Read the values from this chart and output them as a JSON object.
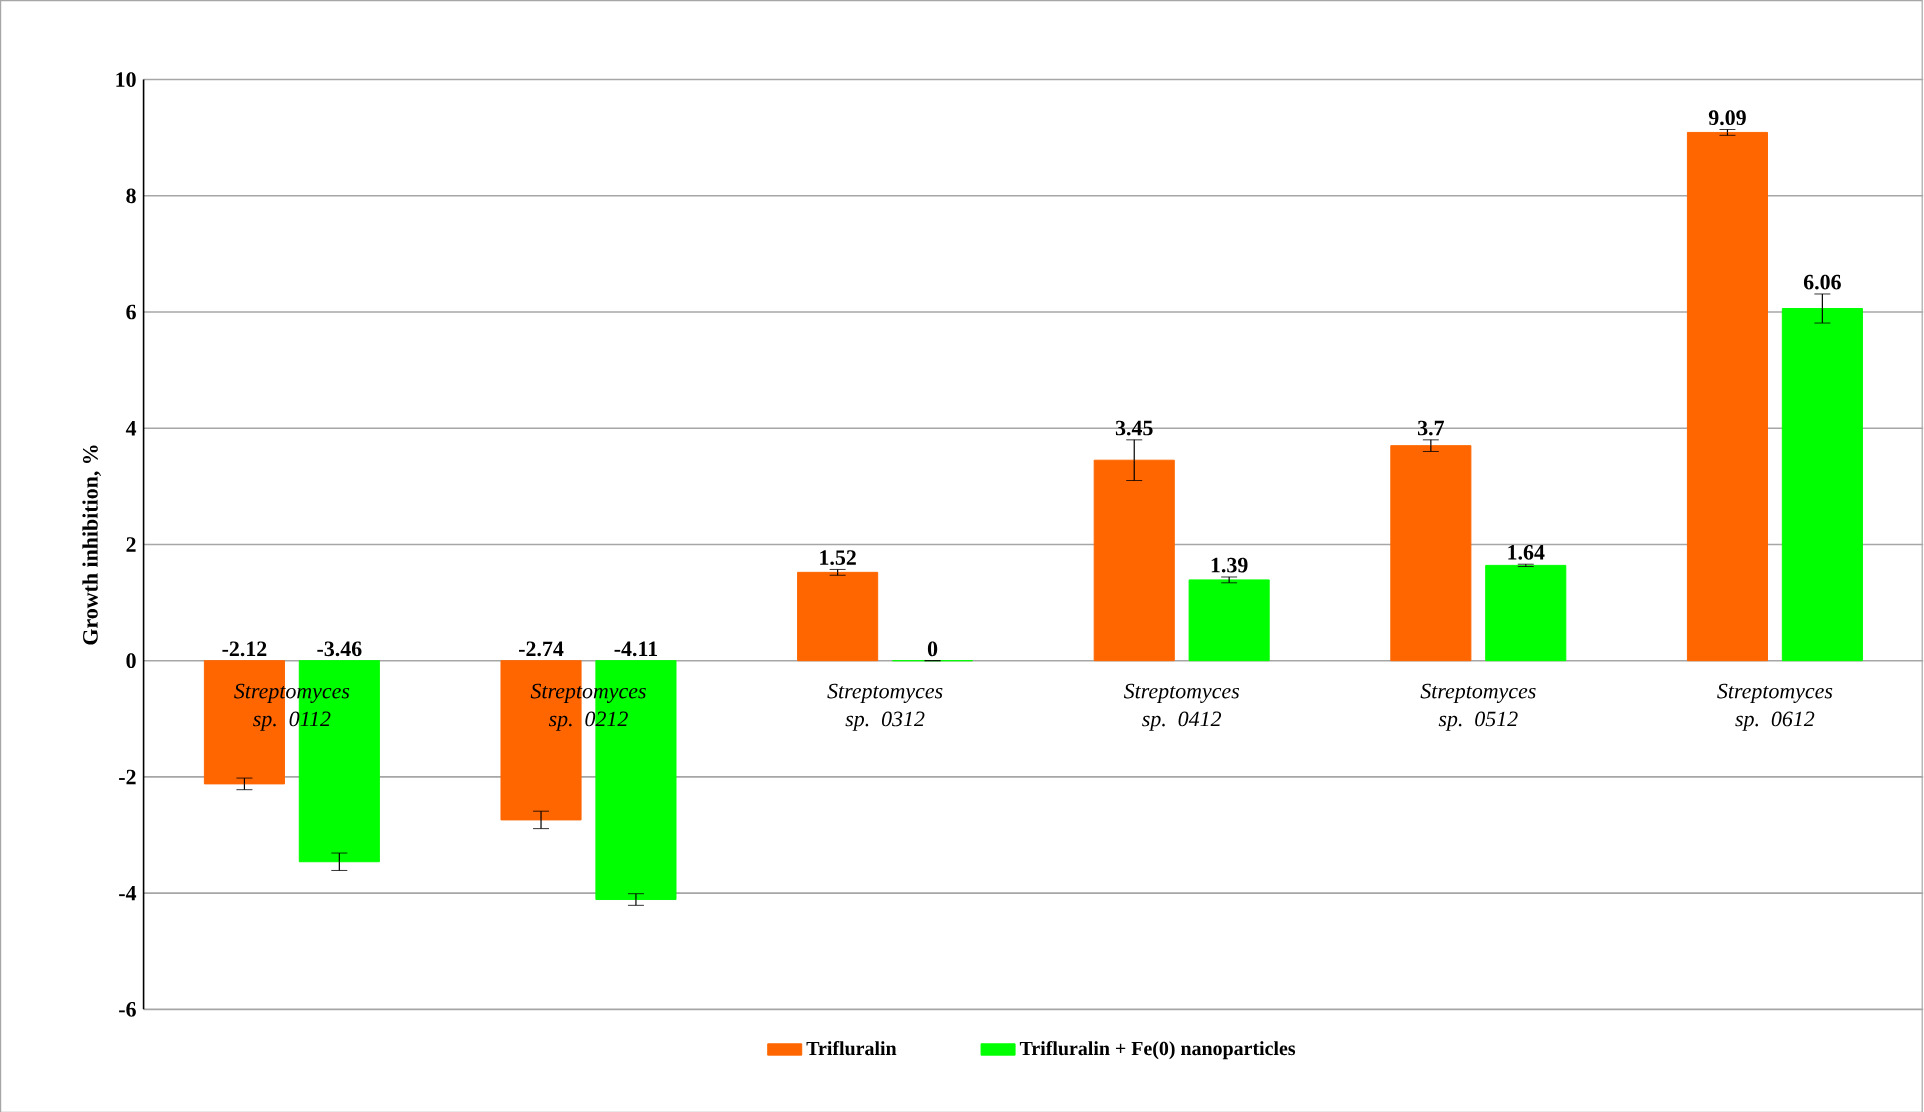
{
  "chart_data": {
    "type": "bar",
    "ylabel": "Growth inhibition, %",
    "categories": [
      "Streptomyces sp. 0112",
      "Streptomyces sp. 0212",
      "Streptomyces sp. 0312",
      "Streptomyces sp. 0412",
      "Streptomyces sp. 0512",
      "Streptomyces sp. 0612"
    ],
    "series": [
      {
        "name": "Trifluralin",
        "color": "#ff6600",
        "values": [
          -2.12,
          -2.74,
          1.52,
          3.45,
          3.7,
          9.09
        ],
        "errors": [
          0.1,
          0.15,
          0.05,
          0.35,
          0.1,
          0.05
        ]
      },
      {
        "name": "Trifluralin + Fe(0) nanoparticles",
        "color": "#00ff00",
        "values": [
          -3.46,
          -4.11,
          0,
          1.39,
          1.64,
          6.06
        ],
        "errors": [
          0.15,
          0.1,
          null,
          0.05,
          0.02,
          0.25
        ]
      }
    ],
    "ylim": [
      -6,
      10
    ],
    "yticks": [
      -6,
      -4,
      -2,
      0,
      2,
      4,
      6,
      8,
      10
    ],
    "grid": "y",
    "legend": "bottom",
    "data_labels": true
  }
}
